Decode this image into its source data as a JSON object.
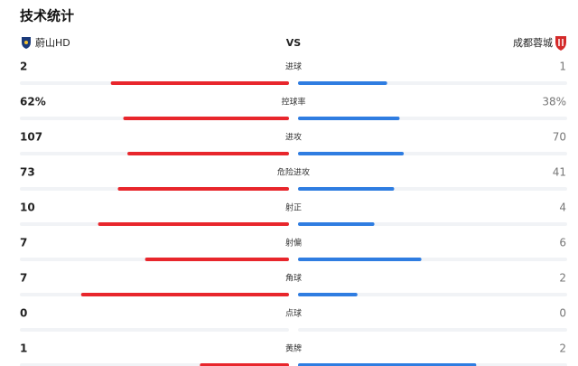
{
  "header": {
    "title": "技术统计",
    "home": "蔚山HD",
    "vs": "VS",
    "away": "成都蓉城"
  },
  "stats": [
    {
      "label": "进球",
      "home": 2,
      "away": 1
    },
    {
      "label": "控球率",
      "home": 62,
      "away": 38,
      "home_label": "62%",
      "away_label": "38%"
    },
    {
      "label": "进攻",
      "home": 107,
      "away": 70
    },
    {
      "label": "危险进攻",
      "home": 73,
      "away": 41
    },
    {
      "label": "射正",
      "home": 10,
      "away": 4
    },
    {
      "label": "射偏",
      "home": 7,
      "away": 6
    },
    {
      "label": "角球",
      "home": 7,
      "away": 2
    },
    {
      "label": "点球",
      "home": 0,
      "away": 0
    },
    {
      "label": "黄牌",
      "home": 1,
      "away": 2
    }
  ]
}
